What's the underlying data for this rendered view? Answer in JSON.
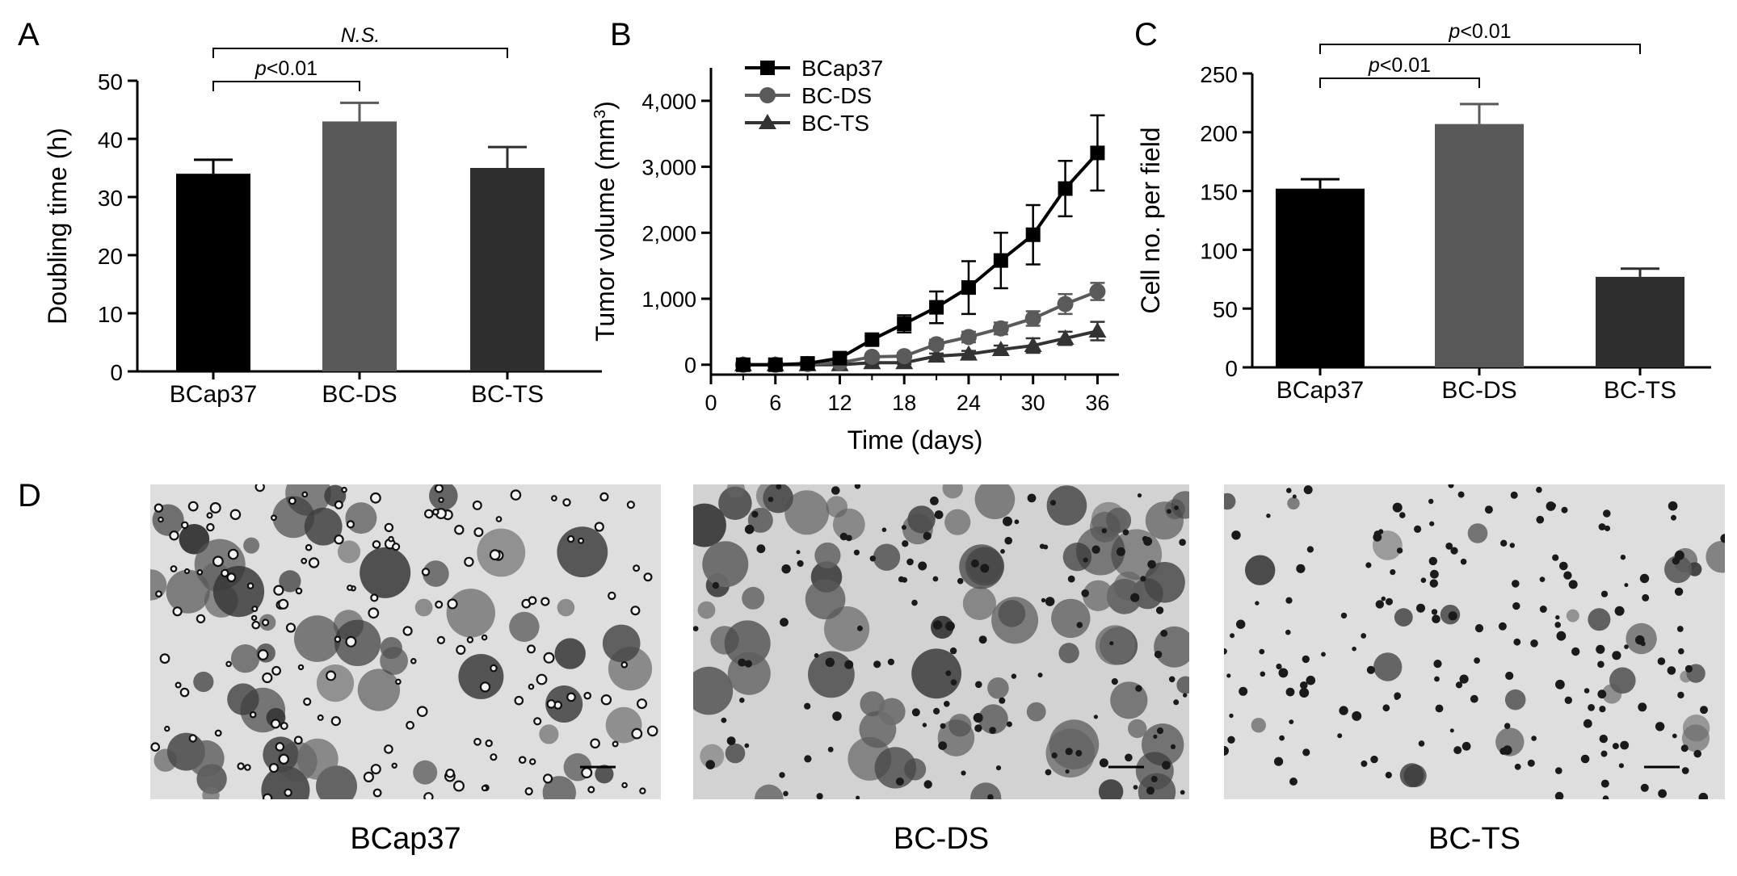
{
  "chart_data": [
    {
      "panel": "A",
      "type": "bar",
      "categories": [
        "BCap37",
        "BC-DS",
        "BC-TS"
      ],
      "values": [
        34,
        43,
        35
      ],
      "errors": [
        2.4,
        3.2,
        3.6
      ],
      "colors": [
        "#000000",
        "#595959",
        "#2e2e2e"
      ],
      "ylabel": "Doubling time (h)",
      "ylim": [
        0,
        50
      ],
      "yticks": [
        "0",
        "10",
        "20",
        "30",
        "40",
        "50"
      ],
      "significance": [
        {
          "from": 0,
          "to": 1,
          "label_prefix": "p",
          "label_suffix": "<0.01"
        },
        {
          "from": 0,
          "to": 2,
          "label": "N.S."
        }
      ]
    },
    {
      "panel": "B",
      "type": "line",
      "x": [
        3,
        6,
        9,
        12,
        15,
        18,
        21,
        24,
        27,
        30,
        33,
        36
      ],
      "xlabel": "Time (days)",
      "ylabel_main": "Tumor volume (mm",
      "ylabel_sup": "3",
      "ylabel_end": ")",
      "xlim": [
        0,
        38
      ],
      "ylim": [
        -150,
        4500
      ],
      "xticks": [
        "0",
        "6",
        "12",
        "18",
        "24",
        "30",
        "36"
      ],
      "yticks": [
        "0",
        "1,000",
        "2,000",
        "3,000",
        "4,000"
      ],
      "legend_position": "top-left",
      "series": [
        {
          "name": "BCap37",
          "marker": "square",
          "color": "#000000",
          "values": [
            0,
            0,
            20,
            100,
            380,
            620,
            870,
            1170,
            1580,
            1970,
            2670,
            3210
          ],
          "errors": [
            0,
            0,
            20,
            40,
            60,
            130,
            240,
            400,
            420,
            450,
            420,
            570
          ]
        },
        {
          "name": "BC-DS",
          "marker": "circle",
          "color": "#5a5a5a",
          "values": [
            0,
            0,
            10,
            30,
            120,
            130,
            310,
            420,
            550,
            700,
            920,
            1110
          ],
          "errors": [
            0,
            0,
            10,
            20,
            40,
            50,
            70,
            80,
            90,
            110,
            150,
            130
          ]
        },
        {
          "name": "BC-TS",
          "marker": "triangle",
          "color": "#333333",
          "values": [
            0,
            0,
            0,
            0,
            30,
            30,
            130,
            160,
            230,
            290,
            400,
            510
          ],
          "errors": [
            0,
            0,
            0,
            0,
            20,
            20,
            40,
            50,
            60,
            110,
            100,
            140
          ]
        }
      ]
    },
    {
      "panel": "C",
      "type": "bar",
      "categories": [
        "BCap37",
        "BC-DS",
        "BC-TS"
      ],
      "values": [
        152,
        207,
        77
      ],
      "errors": [
        8,
        17,
        7
      ],
      "colors": [
        "#000000",
        "#595959",
        "#2e2e2e"
      ],
      "ylabel": "Cell no. per field",
      "ylim": [
        0,
        250
      ],
      "yticks": [
        "0",
        "50",
        "100",
        "150",
        "200",
        "250"
      ],
      "significance": [
        {
          "from": 0,
          "to": 1,
          "label_prefix": "p",
          "label_suffix": "<0.01"
        },
        {
          "from": 0,
          "to": 2,
          "label_prefix": "p",
          "label_suffix": "<0.01"
        }
      ]
    }
  ],
  "panel_letters": {
    "a": "A",
    "b": "B",
    "c": "C",
    "d": "D"
  },
  "micrographs": [
    {
      "label": "BCap37",
      "density": "dense",
      "style": "rings"
    },
    {
      "label": "BC-DS",
      "density": "very-dense",
      "style": "clusters"
    },
    {
      "label": "BC-TS",
      "density": "sparse",
      "style": "dots"
    }
  ]
}
